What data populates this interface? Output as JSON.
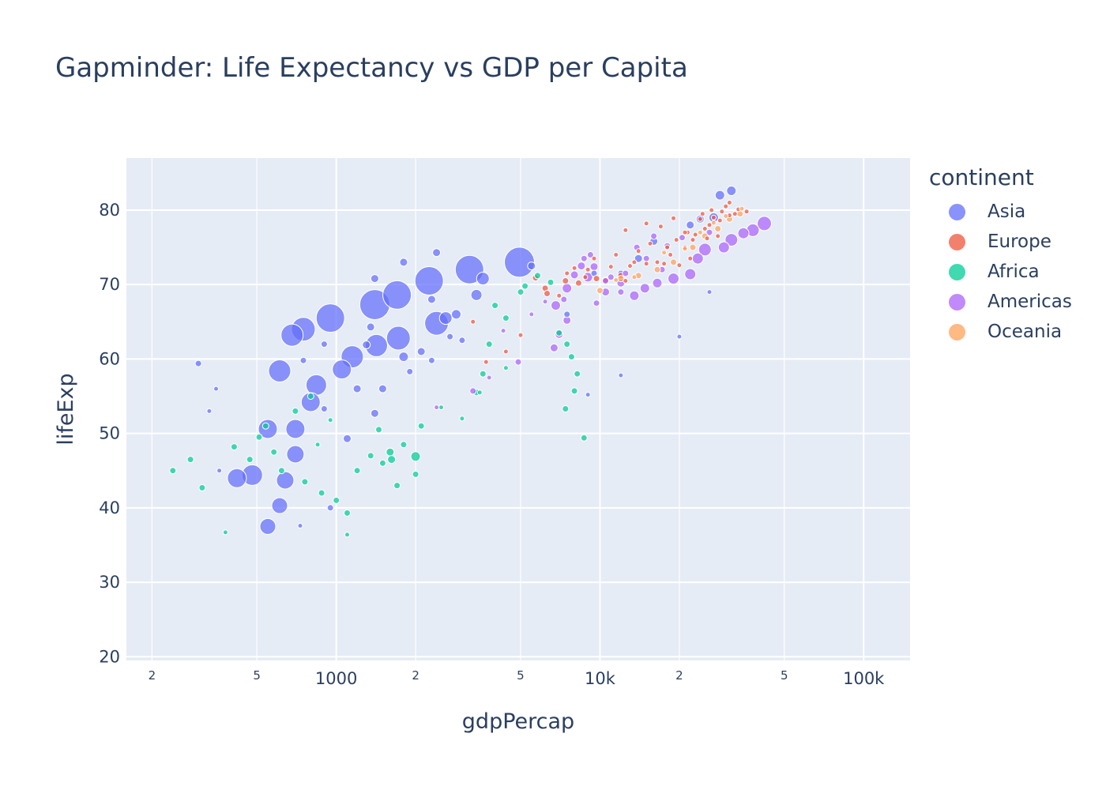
{
  "chart_data": {
    "type": "scatter",
    "title": "Gapminder: Life Expectancy vs GDP per Capita",
    "xlabel": "gdpPercap",
    "ylabel": "lifeExp",
    "x_scale": "log",
    "xlim": [
      160,
      150000
    ],
    "ylim": [
      19.5,
      87
    ],
    "x_major_ticks": [
      {
        "value": 1000,
        "label": "1000"
      },
      {
        "value": 10000,
        "label": "10k"
      },
      {
        "value": 100000,
        "label": "100k"
      }
    ],
    "x_minor_ticks": [
      {
        "value": 200,
        "label": "2"
      },
      {
        "value": 500,
        "label": "5"
      },
      {
        "value": 2000,
        "label": "2"
      },
      {
        "value": 5000,
        "label": "5"
      },
      {
        "value": 20000,
        "label": "2"
      },
      {
        "value": 50000,
        "label": "5"
      }
    ],
    "y_ticks": [
      20,
      30,
      40,
      50,
      60,
      70,
      80
    ],
    "grid": true,
    "legend": {
      "title": "continent",
      "placement": "right"
    },
    "series": [
      {
        "name": "Asia",
        "color": "#636efa",
        "points": [
          [
            950,
            65.5,
            18
          ],
          [
            1400,
            67.3,
            19
          ],
          [
            2250,
            70.5,
            18
          ],
          [
            4950,
            73.0,
            19
          ],
          [
            3200,
            72.0,
            18
          ],
          [
            1700,
            68.6,
            18
          ],
          [
            750,
            64.0,
            15
          ],
          [
            1050,
            58.6,
            12
          ],
          [
            680,
            63.2,
            14
          ],
          [
            1150,
            60.3,
            14
          ],
          [
            1420,
            61.8,
            14
          ],
          [
            1720,
            62.8,
            15
          ],
          [
            2400,
            64.8,
            15
          ],
          [
            840,
            56.5,
            13
          ],
          [
            800,
            54.2,
            12
          ],
          [
            610,
            58.4,
            14
          ],
          [
            550,
            50.6,
            12
          ],
          [
            700,
            50.6,
            12
          ],
          [
            700,
            47.2,
            11
          ],
          [
            480,
            44.4,
            13
          ],
          [
            420,
            44.0,
            12
          ],
          [
            640,
            43.7,
            11
          ],
          [
            610,
            40.3,
            10
          ],
          [
            550,
            37.5,
            10
          ],
          [
            3600,
            70.8,
            8
          ],
          [
            2600,
            65.5,
            8
          ],
          [
            3400,
            68.6,
            7
          ],
          [
            2850,
            66.0,
            6
          ],
          [
            2300,
            68.0,
            5
          ],
          [
            1800,
            60.3,
            6
          ],
          [
            2100,
            61.0,
            5
          ],
          [
            1300,
            61.9,
            5
          ],
          [
            1350,
            64.3,
            5
          ],
          [
            1400,
            70.8,
            5
          ],
          [
            1800,
            73.0,
            5
          ],
          [
            2400,
            74.3,
            5
          ],
          [
            1200,
            56.0,
            5
          ],
          [
            1500,
            56.0,
            5
          ],
          [
            1400,
            52.7,
            5
          ],
          [
            1100,
            49.3,
            5
          ],
          [
            300,
            59.4,
            4
          ],
          [
            350,
            56.0,
            3
          ],
          [
            330,
            53.0,
            3
          ],
          [
            360,
            45.0,
            3
          ],
          [
            750,
            59.8,
            4
          ],
          [
            900,
            62.0,
            4
          ],
          [
            2700,
            63.0,
            4
          ],
          [
            3000,
            62.5,
            4
          ],
          [
            5500,
            72.5,
            5
          ],
          [
            7500,
            66.0,
            4
          ],
          [
            9500,
            71.5,
            4
          ],
          [
            12000,
            71.5,
            4
          ],
          [
            14000,
            73.5,
            5
          ],
          [
            16000,
            75.8,
            5
          ],
          [
            22000,
            78.0,
            5
          ],
          [
            24000,
            78.8,
            5
          ],
          [
            27000,
            79.0,
            6
          ],
          [
            28500,
            82.0,
            6
          ],
          [
            31500,
            82.6,
            6
          ],
          [
            26000,
            69.0,
            3
          ],
          [
            20000,
            63.0,
            3
          ],
          [
            12000,
            57.8,
            3
          ],
          [
            9000,
            55.2,
            3
          ],
          [
            1900,
            58.3,
            4
          ],
          [
            2300,
            59.8,
            4
          ],
          [
            950,
            40.0,
            4
          ],
          [
            730,
            37.6,
            3
          ],
          [
            900,
            53.3,
            4
          ]
        ]
      },
      {
        "name": "Europe",
        "color": "#ef553b",
        "points": [
          [
            5700,
            70.9,
            4
          ],
          [
            6200,
            69.5,
            4
          ],
          [
            6300,
            68.8,
            4
          ],
          [
            7000,
            68.5,
            3
          ],
          [
            7400,
            70.5,
            4
          ],
          [
            8300,
            70.2,
            4
          ],
          [
            8800,
            71.0,
            3
          ],
          [
            9700,
            70.8,
            4
          ],
          [
            10500,
            70.6,
            4
          ],
          [
            11000,
            72.4,
            3
          ],
          [
            12000,
            71.2,
            4
          ],
          [
            12500,
            70.5,
            3
          ],
          [
            13000,
            72.5,
            3
          ],
          [
            14000,
            74.5,
            3
          ],
          [
            15000,
            72.8,
            3
          ],
          [
            15500,
            75.5,
            3
          ],
          [
            16500,
            73.0,
            3
          ],
          [
            17500,
            72.8,
            3
          ],
          [
            18000,
            75.0,
            3
          ],
          [
            18500,
            74.0,
            3
          ],
          [
            19500,
            76.0,
            3
          ],
          [
            20000,
            72.6,
            3
          ],
          [
            21000,
            75.0,
            3
          ],
          [
            21500,
            77.0,
            3
          ],
          [
            22000,
            73.5,
            3
          ],
          [
            23000,
            76.7,
            3
          ],
          [
            24000,
            78.8,
            3
          ],
          [
            25000,
            77.5,
            3
          ],
          [
            26000,
            78.0,
            3
          ],
          [
            27000,
            79.0,
            3
          ],
          [
            28000,
            76.5,
            3
          ],
          [
            29000,
            79.8,
            3
          ],
          [
            30000,
            80.5,
            3
          ],
          [
            31000,
            79.3,
            3
          ],
          [
            32500,
            79.5,
            3
          ],
          [
            33500,
            80.1,
            3
          ],
          [
            36000,
            79.8,
            3
          ],
          [
            26500,
            80.0,
            3
          ],
          [
            24500,
            79.5,
            3
          ],
          [
            13500,
            73.0,
            3
          ],
          [
            11500,
            74.0,
            3
          ],
          [
            9000,
            72.0,
            3
          ],
          [
            8000,
            72.2,
            3
          ],
          [
            5000,
            63.2,
            3
          ],
          [
            4400,
            61.0,
            3
          ],
          [
            3700,
            59.6,
            3
          ],
          [
            3300,
            65.0,
            3
          ],
          [
            12500,
            77.3,
            3
          ],
          [
            15000,
            78.2,
            3
          ],
          [
            17000,
            77.8,
            3
          ],
          [
            19000,
            78.9,
            3
          ],
          [
            21000,
            77.0,
            3
          ],
          [
            22500,
            76.0,
            3
          ],
          [
            25500,
            76.2,
            3
          ],
          [
            28500,
            78.6,
            3
          ],
          [
            31000,
            81.0,
            3
          ],
          [
            9500,
            73.5,
            3
          ],
          [
            7500,
            71.5,
            3
          ]
        ]
      },
      {
        "name": "Africa",
        "color": "#00cc96",
        "points": [
          [
            240,
            45.0,
            4
          ],
          [
            280,
            46.5,
            4
          ],
          [
            310,
            42.7,
            4
          ],
          [
            410,
            48.2,
            4
          ],
          [
            470,
            46.5,
            4
          ],
          [
            510,
            49.5,
            4
          ],
          [
            540,
            51.0,
            4
          ],
          [
            580,
            47.5,
            4
          ],
          [
            620,
            45.0,
            4
          ],
          [
            700,
            53.0,
            4
          ],
          [
            760,
            43.5,
            4
          ],
          [
            800,
            55.0,
            4
          ],
          [
            850,
            48.5,
            3
          ],
          [
            880,
            42.0,
            4
          ],
          [
            1000,
            41.0,
            4
          ],
          [
            1100,
            39.3,
            4
          ],
          [
            1200,
            45.0,
            4
          ],
          [
            1350,
            47.0,
            4
          ],
          [
            1450,
            50.5,
            4
          ],
          [
            1600,
            47.5,
            5
          ],
          [
            1620,
            46.5,
            5
          ],
          [
            1500,
            46.0,
            4
          ],
          [
            1700,
            43.0,
            4
          ],
          [
            2000,
            46.9,
            6
          ],
          [
            2000,
            44.5,
            4
          ],
          [
            2100,
            51.0,
            4
          ],
          [
            1800,
            48.5,
            4
          ],
          [
            2500,
            53.5,
            3
          ],
          [
            3000,
            52.0,
            3
          ],
          [
            3400,
            55.5,
            4
          ],
          [
            3600,
            58.0,
            4
          ],
          [
            3800,
            62.0,
            4
          ],
          [
            4000,
            67.2,
            4
          ],
          [
            4400,
            65.5,
            4
          ],
          [
            5000,
            69.0,
            4
          ],
          [
            5200,
            69.8,
            4
          ],
          [
            5800,
            71.2,
            4
          ],
          [
            6500,
            70.3,
            4
          ],
          [
            7000,
            63.5,
            4
          ],
          [
            7500,
            62.0,
            4
          ],
          [
            7800,
            60.3,
            4
          ],
          [
            8200,
            58.0,
            4
          ],
          [
            7400,
            53.3,
            4
          ],
          [
            8700,
            49.4,
            4
          ],
          [
            8000,
            55.7,
            4
          ],
          [
            3500,
            55.5,
            3
          ],
          [
            4400,
            58.8,
            3
          ],
          [
            950,
            51.8,
            3
          ],
          [
            1100,
            36.4,
            3
          ],
          [
            380,
            36.7,
            3
          ]
        ]
      },
      {
        "name": "Americas",
        "color": "#ab63fa",
        "points": [
          [
            42000,
            78.2,
            9
          ],
          [
            38000,
            77.3,
            8
          ],
          [
            35000,
            76.9,
            7
          ],
          [
            31500,
            76.0,
            8
          ],
          [
            29500,
            75.0,
            7
          ],
          [
            25000,
            74.7,
            8
          ],
          [
            23500,
            73.5,
            7
          ],
          [
            22000,
            71.4,
            7
          ],
          [
            19000,
            70.8,
            7
          ],
          [
            16500,
            70.2,
            6
          ],
          [
            14800,
            69.5,
            6
          ],
          [
            13500,
            68.5,
            6
          ],
          [
            12000,
            70.2,
            5
          ],
          [
            10500,
            69.0,
            5
          ],
          [
            9500,
            72.4,
            5
          ],
          [
            9000,
            71.0,
            6
          ],
          [
            8500,
            72.5,
            5
          ],
          [
            8000,
            71.3,
            5
          ],
          [
            7500,
            69.5,
            6
          ],
          [
            7300,
            68.0,
            4
          ],
          [
            6800,
            67.2,
            6
          ],
          [
            7500,
            65.2,
            5
          ],
          [
            7000,
            63.3,
            5
          ],
          [
            6700,
            61.5,
            5
          ],
          [
            4900,
            59.6,
            4
          ],
          [
            3800,
            57.5,
            3
          ],
          [
            3300,
            55.7,
            4
          ],
          [
            9200,
            74.0,
            4
          ],
          [
            10500,
            70.5,
            4
          ],
          [
            18000,
            75.2,
            4
          ],
          [
            20500,
            76.3,
            4
          ],
          [
            26000,
            77.0,
            4
          ],
          [
            12000,
            69.0,
            4
          ],
          [
            15000,
            73.5,
            4
          ],
          [
            9700,
            67.5,
            4
          ],
          [
            11000,
            71.0,
            4
          ],
          [
            12500,
            71.5,
            4
          ],
          [
            8700,
            73.5,
            4
          ],
          [
            17200,
            72.0,
            4
          ],
          [
            2400,
            53.5,
            3
          ],
          [
            4300,
            63.8,
            3
          ],
          [
            5500,
            66.0,
            3
          ],
          [
            6200,
            67.7,
            3
          ],
          [
            13800,
            75.0,
            4
          ],
          [
            16000,
            76.5,
            4
          ]
        ]
      },
      {
        "name": "Oceania",
        "color": "#ffa15a",
        "points": [
          [
            10000,
            69.2,
            4
          ],
          [
            12000,
            70.8,
            4
          ],
          [
            14000,
            71.2,
            4
          ],
          [
            16500,
            72.0,
            4
          ],
          [
            19000,
            73.0,
            4
          ],
          [
            22500,
            75.0,
            4
          ],
          [
            25000,
            76.5,
            4
          ],
          [
            28000,
            77.5,
            4
          ],
          [
            31000,
            78.8,
            4
          ],
          [
            34000,
            79.5,
            4
          ],
          [
            11500,
            70.6,
            3
          ],
          [
            13500,
            71.0,
            3
          ],
          [
            17500,
            74.3,
            3
          ],
          [
            21000,
            74.8,
            3
          ],
          [
            24000,
            77.0,
            3
          ],
          [
            27000,
            78.3,
            3
          ],
          [
            30000,
            79.2,
            3
          ],
          [
            34500,
            80.2,
            3
          ]
        ]
      }
    ]
  }
}
